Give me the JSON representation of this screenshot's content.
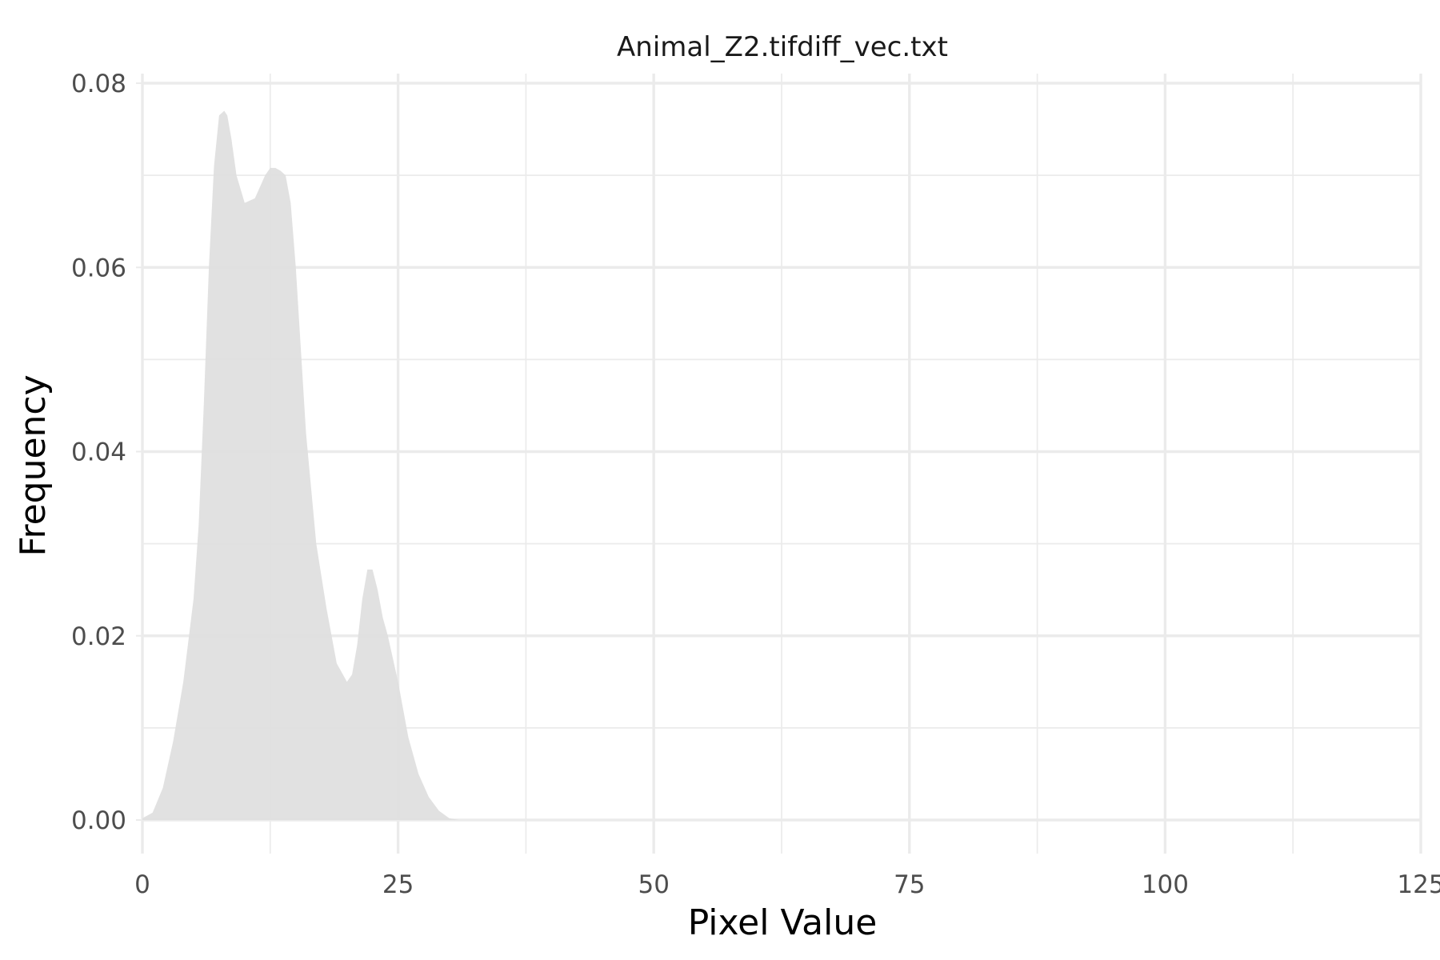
{
  "chart_data": {
    "type": "area",
    "title": "Animal_Z2.tifdiff_vec.txt",
    "xlabel": "Pixel Value",
    "ylabel": "Frequency",
    "xlim": [
      0,
      125
    ],
    "ylim": [
      0,
      0.08
    ],
    "x_ticks": [
      0,
      25,
      50,
      75,
      100,
      125
    ],
    "x_tick_labels": [
      "0",
      "25",
      "50",
      "75",
      "100",
      "125"
    ],
    "y_ticks": [
      0,
      0.02,
      0.04,
      0.06,
      0.08
    ],
    "y_tick_labels": [
      "0.00",
      "0.02",
      "0.04",
      "0.06",
      "0.08"
    ],
    "grid": true,
    "legend": "none",
    "fill_color": "#dedede",
    "series": [
      {
        "x": [
          0,
          1,
          2,
          3,
          4,
          5,
          5.5,
          6,
          6.5,
          7,
          7.5,
          8,
          8.3,
          8.7,
          9.2,
          10,
          11,
          12,
          12.5,
          13,
          13.5,
          14,
          14.5,
          15,
          16,
          17,
          18,
          19,
          20,
          20.5,
          21,
          21.5,
          22,
          22.5,
          23,
          23.5,
          24,
          25,
          26,
          27,
          28,
          29,
          30,
          30.5,
          31,
          125
        ],
        "y": [
          0.0002,
          0.0008,
          0.0035,
          0.0085,
          0.015,
          0.024,
          0.032,
          0.045,
          0.06,
          0.071,
          0.0765,
          0.077,
          0.0765,
          0.074,
          0.07,
          0.067,
          0.0675,
          0.07,
          0.0708,
          0.0708,
          0.0705,
          0.07,
          0.067,
          0.06,
          0.042,
          0.03,
          0.023,
          0.017,
          0.015,
          0.0158,
          0.019,
          0.024,
          0.0272,
          0.0272,
          0.025,
          0.022,
          0.02,
          0.015,
          0.009,
          0.005,
          0.0025,
          0.001,
          0.0002,
          0.0001,
          0,
          0
        ]
      }
    ]
  }
}
